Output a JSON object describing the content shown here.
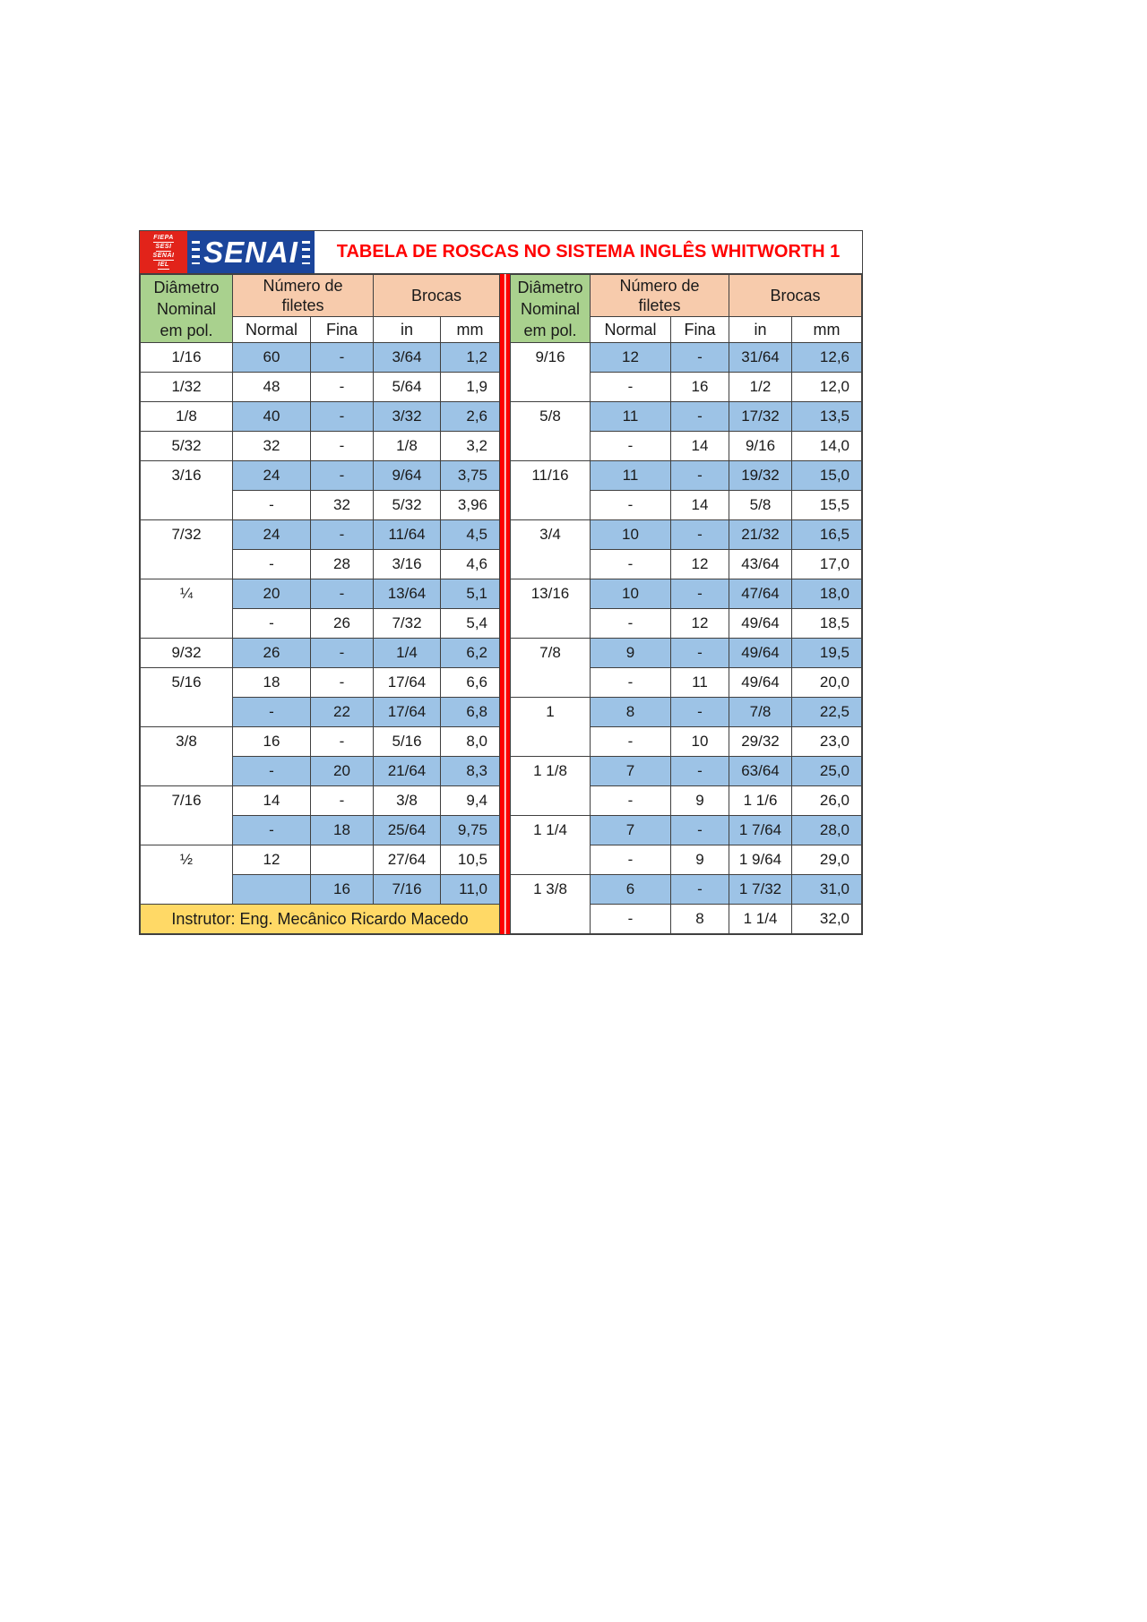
{
  "logo": {
    "stack": [
      "FIEPA",
      "SESI",
      "SENAI",
      "IEL"
    ],
    "brand": "SENAI"
  },
  "title": "TABELA DE ROSCAS NO SISTEMA INGLÊS WHITWORTH 1",
  "headers": {
    "diameter_line1": "Diâmetro",
    "diameter_line2": "Nominal",
    "diameter_line3": "em pol.",
    "filetes_line1": "Número de",
    "filetes_line2": "filetes",
    "brocas": "Brocas",
    "sub": {
      "normal": "Normal",
      "fina": "Fina",
      "inch": "in",
      "mm": "mm"
    }
  },
  "footer": {
    "instructor": "Instrutor: Eng. Mecânico Ricardo Macedo"
  },
  "colors": {
    "green": "#a9d18e",
    "peach": "#f7cbac",
    "blue": "#9dc3e6",
    "yellow": "#ffd966",
    "red": "#ff0000",
    "logoRed": "#e2231a",
    "logoBlue": "#1b459b",
    "border": "#404040"
  },
  "left_table": {
    "rows": [
      {
        "d": "1/16",
        "span": 1,
        "normal": "60",
        "fina": "-",
        "inch": "3/64",
        "mm": "1,2",
        "shade": "b"
      },
      {
        "d": "1/32",
        "span": 1,
        "normal": "48",
        "fina": "-",
        "inch": "5/64",
        "mm": "1,9",
        "shade": "w"
      },
      {
        "d": "1/8",
        "span": 1,
        "normal": "40",
        "fina": "-",
        "inch": "3/32",
        "mm": "2,6",
        "shade": "b"
      },
      {
        "d": "5/32",
        "span": 1,
        "normal": "32",
        "fina": "-",
        "inch": "1/8",
        "mm": "3,2",
        "shade": "w"
      },
      {
        "d": "3/16",
        "span": 2,
        "normal": "24",
        "fina": "-",
        "inch": "9/64",
        "mm": "3,75",
        "shade": "b"
      },
      {
        "d": null,
        "normal": "-",
        "fina": "32",
        "inch": "5/32",
        "mm": "3,96",
        "shade": "w"
      },
      {
        "d": "7/32",
        "span": 2,
        "normal": "24",
        "fina": "-",
        "inch": "11/64",
        "mm": "4,5",
        "shade": "b"
      },
      {
        "d": null,
        "normal": "-",
        "fina": "28",
        "inch": "3/16",
        "mm": "4,6",
        "shade": "w"
      },
      {
        "d": "¼",
        "span": 2,
        "normal": "20",
        "fina": "-",
        "inch": "13/64",
        "mm": "5,1",
        "shade": "b"
      },
      {
        "d": null,
        "normal": "-",
        "fina": "26",
        "inch": "7/32",
        "mm": "5,4",
        "shade": "w"
      },
      {
        "d": "9/32",
        "span": 1,
        "normal": "26",
        "fina": "-",
        "inch": "1/4",
        "mm": "6,2",
        "shade": "b"
      },
      {
        "d": "5/16",
        "span": 2,
        "normal": "18",
        "fina": "-",
        "inch": "17/64",
        "mm": "6,6",
        "shade": "w"
      },
      {
        "d": null,
        "normal": "-",
        "fina": "22",
        "inch": "17/64",
        "mm": "6,8",
        "shade": "b"
      },
      {
        "d": "3/8",
        "span": 2,
        "normal": "16",
        "fina": "-",
        "inch": "5/16",
        "mm": "8,0",
        "shade": "w"
      },
      {
        "d": null,
        "normal": "-",
        "fina": "20",
        "inch": "21/64",
        "mm": "8,3",
        "shade": "b"
      },
      {
        "d": "7/16",
        "span": 2,
        "normal": "14",
        "fina": "-",
        "inch": "3/8",
        "mm": "9,4",
        "shade": "w"
      },
      {
        "d": null,
        "normal": "-",
        "fina": "18",
        "inch": "25/64",
        "mm": "9,75",
        "shade": "b"
      },
      {
        "d": "½",
        "span": 2,
        "normal": "12",
        "fina": "",
        "inch": "27/64",
        "mm": "10,5",
        "shade": "w"
      },
      {
        "d": null,
        "normal": "",
        "fina": "16",
        "inch": "7/16",
        "mm": "11,0",
        "shade": "b"
      }
    ]
  },
  "right_table": {
    "rows": [
      {
        "d": "9/16",
        "span": 2,
        "normal": "12",
        "fina": "-",
        "inch": "31/64",
        "mm": "12,6",
        "shade": "b"
      },
      {
        "d": null,
        "normal": "-",
        "fina": "16",
        "inch": "1/2",
        "mm": "12,0",
        "shade": "w"
      },
      {
        "d": "5/8",
        "span": 2,
        "normal": "11",
        "fina": "-",
        "inch": "17/32",
        "mm": "13,5",
        "shade": "b"
      },
      {
        "d": null,
        "normal": "-",
        "fina": "14",
        "inch": "9/16",
        "mm": "14,0",
        "shade": "w"
      },
      {
        "d": "11/16",
        "span": 2,
        "normal": "11",
        "fina": "-",
        "inch": "19/32",
        "mm": "15,0",
        "shade": "b"
      },
      {
        "d": null,
        "normal": "-",
        "fina": "14",
        "inch": "5/8",
        "mm": "15,5",
        "shade": "w"
      },
      {
        "d": "3/4",
        "span": 2,
        "normal": "10",
        "fina": "-",
        "inch": "21/32",
        "mm": "16,5",
        "shade": "b"
      },
      {
        "d": null,
        "normal": "-",
        "fina": "12",
        "inch": "43/64",
        "mm": "17,0",
        "shade": "w"
      },
      {
        "d": "13/16",
        "span": 2,
        "normal": "10",
        "fina": "-",
        "inch": "47/64",
        "mm": "18,0",
        "shade": "b"
      },
      {
        "d": null,
        "normal": "-",
        "fina": "12",
        "inch": "49/64",
        "mm": "18,5",
        "shade": "w"
      },
      {
        "d": "7/8",
        "span": 2,
        "normal": "9",
        "fina": "-",
        "inch": "49/64",
        "mm": "19,5",
        "shade": "b"
      },
      {
        "d": null,
        "normal": "-",
        "fina": "11",
        "inch": "49/64",
        "mm": "20,0",
        "shade": "w"
      },
      {
        "d": "1",
        "span": 2,
        "normal": "8",
        "fina": "-",
        "inch": "7/8",
        "mm": "22,5",
        "shade": "b"
      },
      {
        "d": null,
        "normal": "-",
        "fina": "10",
        "inch": "29/32",
        "mm": "23,0",
        "shade": "w"
      },
      {
        "d": "1 1/8",
        "span": 2,
        "normal": "7",
        "fina": "-",
        "inch": "63/64",
        "mm": "25,0",
        "shade": "b"
      },
      {
        "d": null,
        "normal": "-",
        "fina": "9",
        "inch": "1 1/6",
        "mm": "26,0",
        "shade": "w"
      },
      {
        "d": "1 1/4",
        "span": 2,
        "normal": "7",
        "fina": "-",
        "inch": "1 7/64",
        "mm": "28,0",
        "shade": "b"
      },
      {
        "d": null,
        "normal": "-",
        "fina": "9",
        "inch": "1 9/64",
        "mm": "29,0",
        "shade": "w"
      },
      {
        "d": "1 3/8",
        "span": 2,
        "normal": "6",
        "fina": "-",
        "inch": "1 7/32",
        "mm": "31,0",
        "shade": "b"
      },
      {
        "d": null,
        "normal": "-",
        "fina": "8",
        "inch": "1 1/4",
        "mm": "32,0",
        "shade": "w"
      }
    ]
  }
}
